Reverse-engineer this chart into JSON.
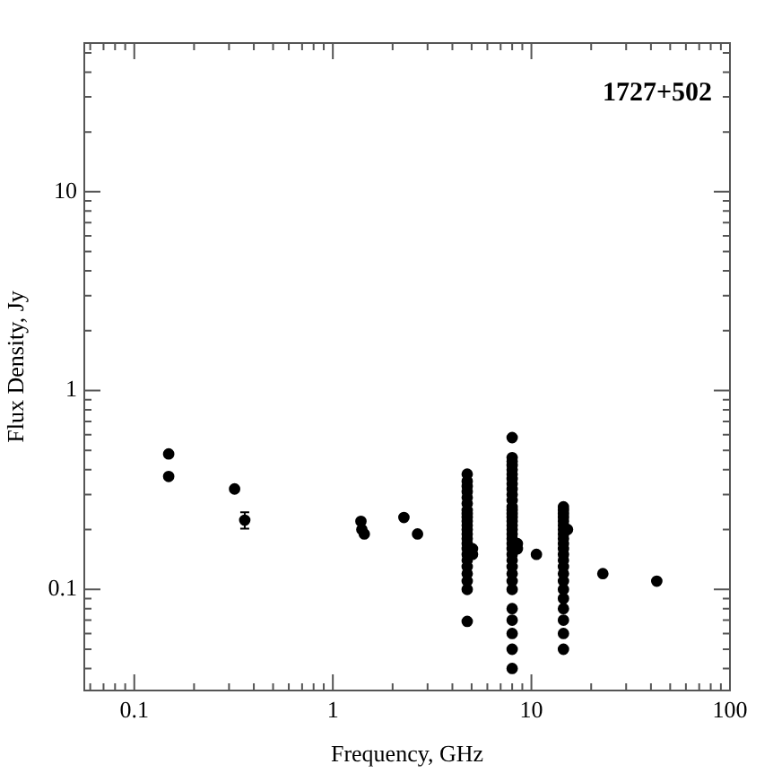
{
  "chart_data": {
    "type": "scatter",
    "xlabel": "Frequency, GHz",
    "ylabel": "Flux Density, Jy",
    "annotations": [
      "1727+502"
    ],
    "log": "xy",
    "marker": "circle",
    "legend": false,
    "grid": false,
    "xlim": [
      0.056,
      100
    ],
    "ylim": [
      0.031,
      56
    ],
    "xticks": [
      {
        "value": 0.06,
        "label": null
      },
      {
        "value": 0.07,
        "label": null
      },
      {
        "value": 0.08,
        "label": null
      },
      {
        "value": 0.09,
        "label": null
      },
      {
        "value": 0.1,
        "label": "0.1"
      },
      {
        "value": 0.2,
        "label": null
      },
      {
        "value": 0.3,
        "label": null
      },
      {
        "value": 0.4,
        "label": null
      },
      {
        "value": 0.5,
        "label": null
      },
      {
        "value": 0.6,
        "label": null
      },
      {
        "value": 0.7,
        "label": null
      },
      {
        "value": 0.8,
        "label": null
      },
      {
        "value": 0.9,
        "label": null
      },
      1,
      {
        "value": 2,
        "label": null
      },
      {
        "value": 3,
        "label": null
      },
      {
        "value": 4,
        "label": null
      },
      {
        "value": 5,
        "label": null
      },
      {
        "value": 6,
        "label": null
      },
      {
        "value": 7,
        "label": null
      },
      {
        "value": 8,
        "label": null
      },
      {
        "value": 9,
        "label": null
      },
      10,
      {
        "value": 20,
        "label": null
      },
      {
        "value": 30,
        "label": null
      },
      {
        "value": 40,
        "label": null
      },
      {
        "value": 50,
        "label": null
      },
      {
        "value": 60,
        "label": null
      },
      {
        "value": 70,
        "label": null
      },
      {
        "value": 80,
        "label": null
      },
      {
        "value": 90,
        "label": null
      },
      100
    ],
    "yticks": [
      {
        "value": 0.04,
        "label": null
      },
      {
        "value": 0.05,
        "label": null
      },
      {
        "value": 0.06,
        "label": null
      },
      {
        "value": 0.07,
        "label": null
      },
      {
        "value": 0.08,
        "label": null
      },
      {
        "value": 0.09,
        "label": null
      },
      {
        "value": 0.1,
        "label": "0.1"
      },
      {
        "value": 0.2,
        "label": null
      },
      {
        "value": 0.3,
        "label": null
      },
      {
        "value": 0.4,
        "label": null
      },
      {
        "value": 0.5,
        "label": null
      },
      {
        "value": 0.6,
        "label": null
      },
      {
        "value": 0.7,
        "label": null
      },
      {
        "value": 0.8,
        "label": null
      },
      {
        "value": 0.9,
        "label": null
      },
      1,
      {
        "value": 2,
        "label": null
      },
      {
        "value": 3,
        "label": null
      },
      {
        "value": 4,
        "label": null
      },
      {
        "value": 5,
        "label": null
      },
      {
        "value": 6,
        "label": null
      },
      {
        "value": 7,
        "label": null
      },
      {
        "value": 8,
        "label": null
      },
      {
        "value": 9,
        "label": null
      },
      10,
      {
        "value": 20,
        "label": null
      },
      {
        "value": 30,
        "label": null
      },
      {
        "value": 40,
        "label": null
      },
      {
        "value": 50,
        "label": null
      }
    ],
    "series": [
      {
        "color": "#000000",
        "x": [
          0.149,
          0.149,
          0.32,
          1.385,
          1.4,
          1.44,
          2.28,
          2.67,
          4.75,
          4.75,
          4.75,
          4.75,
          4.75,
          4.75,
          4.75,
          4.75,
          4.75,
          4.75,
          4.75,
          4.75,
          4.75,
          4.75,
          4.75,
          4.75,
          4.75,
          4.75,
          4.75,
          4.75,
          4.75,
          4.75,
          4.75,
          5.05,
          5.05,
          8.0,
          8.0,
          8.0,
          8.0,
          8.0,
          8.0,
          8.0,
          8.0,
          8.0,
          8.0,
          8.0,
          8.0,
          8.0,
          8.0,
          8.0,
          8.0,
          8.0,
          8.0,
          8.0,
          8.0,
          8.0,
          8.0,
          8.0,
          8.0,
          8.0,
          8.0,
          8.0,
          8.0,
          8.0,
          8.0,
          8.0,
          8.0,
          8.0,
          8.5,
          8.5,
          10.6,
          14.5,
          14.5,
          14.5,
          14.5,
          14.5,
          14.5,
          14.5,
          14.5,
          14.5,
          14.5,
          14.5,
          14.5,
          14.5,
          14.5,
          14.5,
          14.5,
          14.5,
          14.5,
          14.5,
          14.5,
          14.5,
          14.5,
          15.2,
          22.9,
          42.8
        ],
        "values": [
          0.48,
          0.37,
          0.32,
          0.22,
          0.2,
          0.19,
          0.23,
          0.19,
          0.38,
          0.35,
          0.33,
          0.31,
          0.29,
          0.27,
          0.25,
          0.24,
          0.23,
          0.22,
          0.21,
          0.2,
          0.19,
          0.18,
          0.17,
          0.16,
          0.15,
          0.14,
          0.13,
          0.12,
          0.11,
          0.1,
          0.069,
          0.15,
          0.16,
          0.58,
          0.46,
          0.44,
          0.42,
          0.4,
          0.38,
          0.36,
          0.34,
          0.32,
          0.3,
          0.28,
          0.26,
          0.25,
          0.24,
          0.23,
          0.22,
          0.21,
          0.2,
          0.19,
          0.18,
          0.17,
          0.16,
          0.15,
          0.14,
          0.13,
          0.12,
          0.11,
          0.1,
          0.08,
          0.07,
          0.06,
          0.05,
          0.04,
          0.17,
          0.16,
          0.15,
          0.26,
          0.25,
          0.24,
          0.23,
          0.22,
          0.21,
          0.2,
          0.19,
          0.18,
          0.17,
          0.16,
          0.15,
          0.14,
          0.13,
          0.12,
          0.11,
          0.1,
          0.09,
          0.08,
          0.07,
          0.06,
          0.05,
          0.2,
          0.12,
          0.11
        ]
      },
      {
        "color": "#000000",
        "x": [
          0.36
        ],
        "values": [
          0.223
        ],
        "errors": [
          [
            0.202,
            0.244
          ]
        ]
      }
    ]
  }
}
